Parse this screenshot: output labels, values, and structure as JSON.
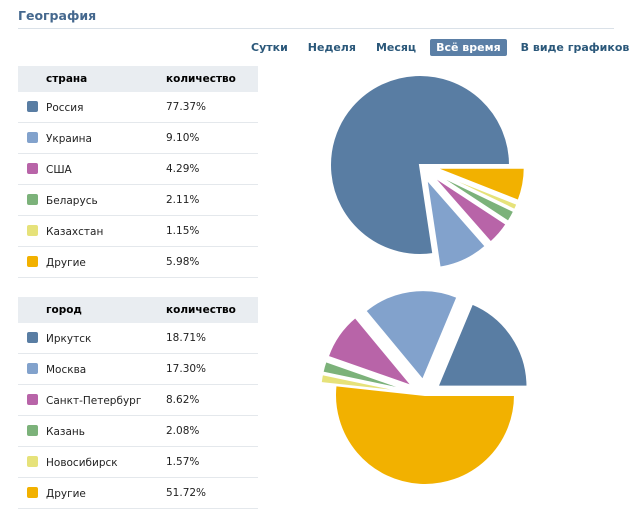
{
  "header": {
    "title": "География"
  },
  "periods": [
    {
      "label": "Сутки",
      "active": false
    },
    {
      "label": "Неделя",
      "active": false
    },
    {
      "label": "Месяц",
      "active": false
    },
    {
      "label": "Всё время",
      "active": true
    },
    {
      "label": "В виде графиков",
      "active": false
    }
  ],
  "countries": {
    "col_name": "страна",
    "col_value": "количество",
    "rows": [
      {
        "name": "Россия",
        "value": "77.37%",
        "color": "#597da3"
      },
      {
        "name": "Украина",
        "value": "9.10%",
        "color": "#82a2cc"
      },
      {
        "name": "США",
        "value": "4.29%",
        "color": "#b864a8"
      },
      {
        "name": "Беларусь",
        "value": "2.11%",
        "color": "#7cb27a"
      },
      {
        "name": "Казахстан",
        "value": "1.15%",
        "color": "#e6e27a"
      },
      {
        "name": "Другие",
        "value": "5.98%",
        "color": "#f2b100"
      }
    ]
  },
  "cities": {
    "col_name": "город",
    "col_value": "количество",
    "rows": [
      {
        "name": "Иркутск",
        "value": "18.71%",
        "color": "#597da3"
      },
      {
        "name": "Москва",
        "value": "17.30%",
        "color": "#82a2cc"
      },
      {
        "name": "Санкт-Петербург",
        "value": "8.62%",
        "color": "#b864a8"
      },
      {
        "name": "Казань",
        "value": "2.08%",
        "color": "#7cb27a"
      },
      {
        "name": "Новосибирск",
        "value": "1.57%",
        "color": "#e6e27a"
      },
      {
        "name": "Другие",
        "value": "51.72%",
        "color": "#f2b100"
      }
    ]
  },
  "chart_data": [
    {
      "type": "pie",
      "title": "",
      "labels": [
        "Россия",
        "Украина",
        "США",
        "Беларусь",
        "Казахстан",
        "Другие"
      ],
      "values": [
        77.37,
        9.1,
        4.29,
        2.11,
        1.15,
        5.98
      ],
      "colors": [
        "#597da3",
        "#82a2cc",
        "#b864a8",
        "#7cb27a",
        "#e6e27a",
        "#f2b100"
      ]
    },
    {
      "type": "pie",
      "title": "",
      "labels": [
        "Иркутск",
        "Москва",
        "Санкт-Петербург",
        "Казань",
        "Новосибирск",
        "Другие"
      ],
      "values": [
        18.71,
        17.3,
        8.62,
        2.08,
        1.57,
        51.72
      ],
      "colors": [
        "#597da3",
        "#82a2cc",
        "#b864a8",
        "#7cb27a",
        "#e6e27a",
        "#f2b100"
      ]
    }
  ]
}
